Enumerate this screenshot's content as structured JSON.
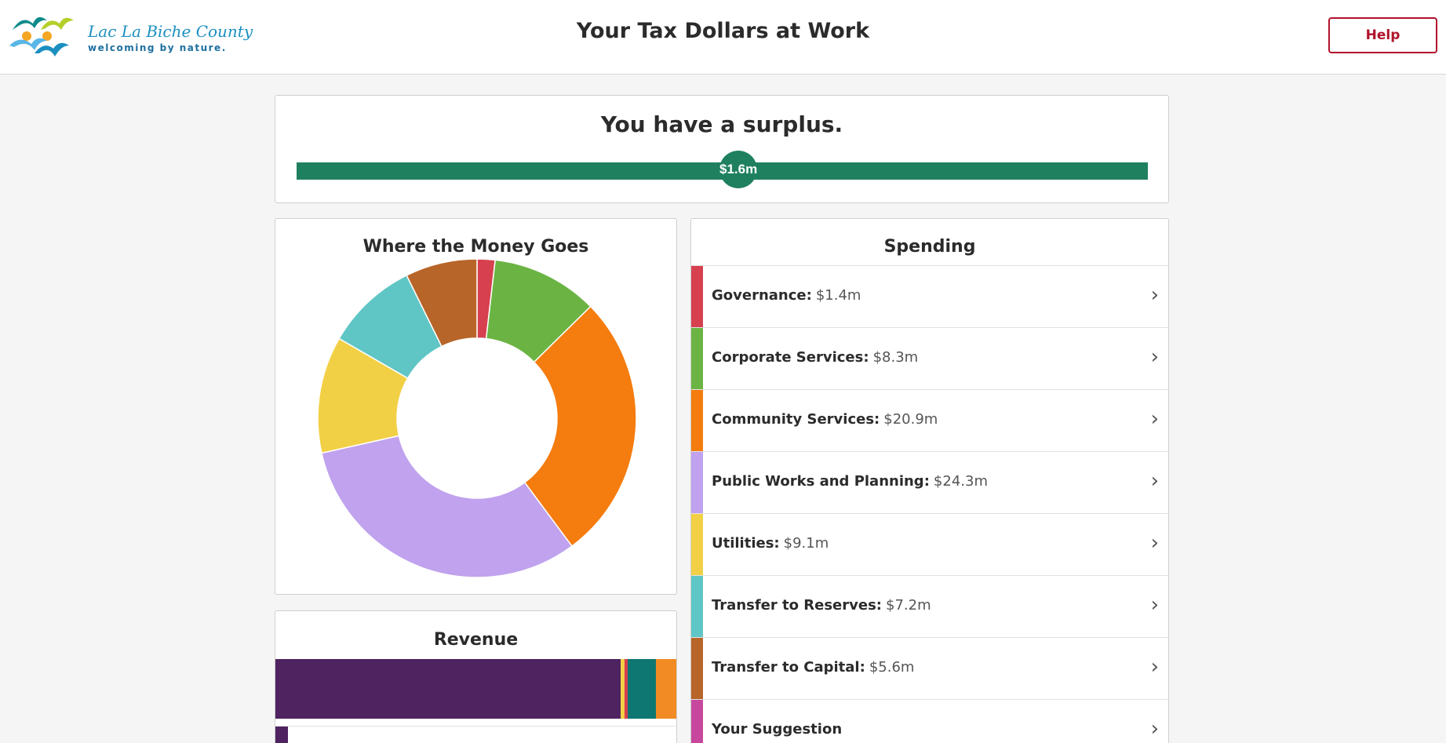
{
  "header": {
    "logo_name": "Lac La Biche County",
    "logo_tagline": "welcoming by nature.",
    "title": "Your Tax Dollars at Work",
    "help_label": "Help"
  },
  "surplus": {
    "heading": "You have a surplus.",
    "amount_label": "$1.6m",
    "bar_color": "#1f8060"
  },
  "where_money_goes": {
    "title": "Where the Money Goes"
  },
  "chart_data": {
    "type": "pie",
    "donut": true,
    "categories": [
      "Governance",
      "Corporate Services",
      "Community Services",
      "Public Works and Planning",
      "Utilities",
      "Transfer to Reserves",
      "Transfer to Capital"
    ],
    "values": [
      1.4,
      8.3,
      20.9,
      24.3,
      9.1,
      7.2,
      5.6
    ],
    "colors": [
      "#d6404f",
      "#6bb444",
      "#f57c0e",
      "#c0a2ee",
      "#f2d045",
      "#5fc5c5",
      "#b86529"
    ],
    "title": "Where the Money Goes"
  },
  "spending": {
    "title": "Spending",
    "items": [
      {
        "name": "Governance:",
        "value": "$1.4m",
        "color": "#d6404f"
      },
      {
        "name": "Corporate Services:",
        "value": "$8.3m",
        "color": "#6bb444"
      },
      {
        "name": "Community Services:",
        "value": "$20.9m",
        "color": "#f57c0e"
      },
      {
        "name": "Public Works and Planning:",
        "value": "$24.3m",
        "color": "#c0a2ee"
      },
      {
        "name": "Utilities:",
        "value": "$9.1m",
        "color": "#f2d045"
      },
      {
        "name": "Transfer to Reserves:",
        "value": "$7.2m",
        "color": "#5fc5c5"
      },
      {
        "name": "Transfer to Capital:",
        "value": "$5.6m",
        "color": "#b86529"
      },
      {
        "name": "Your Suggestion",
        "value": "",
        "color": "#c7479e"
      }
    ],
    "chevron_icon": "chevron-right-icon"
  },
  "revenue": {
    "title": "Revenue",
    "segments": [
      {
        "share": 0.858,
        "color": "#4e2360"
      },
      {
        "share": 0.009,
        "color": "#f2d045"
      },
      {
        "share": 0.009,
        "color": "#d6404f"
      },
      {
        "share": 0.07,
        "color": "#0f7772"
      },
      {
        "share": 0.054,
        "color": "#f28b23"
      }
    ],
    "first_item_color": "#4e2360"
  }
}
